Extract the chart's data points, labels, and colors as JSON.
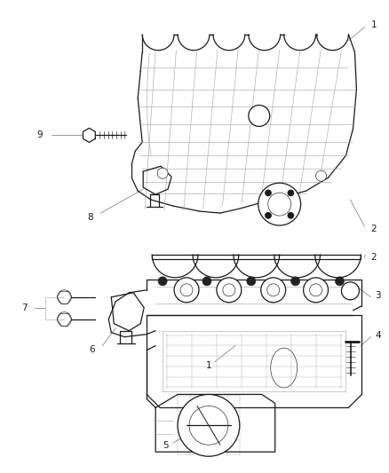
{
  "bg_color": "#ffffff",
  "line_color": "#1a1a1a",
  "gray_color": "#888888",
  "light_gray": "#aaaaaa",
  "figsize": [
    4.38,
    5.33
  ],
  "dpi": 100,
  "lw_main": 0.9,
  "lw_thin": 0.45,
  "lw_label": 0.6,
  "font_size": 7.5
}
